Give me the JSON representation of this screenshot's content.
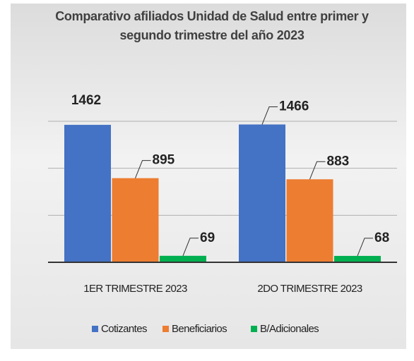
{
  "chart_data": {
    "type": "bar",
    "title": "Comparativo afiliados Unidad de Salud entre primer  y segundo trimestre del año 2023",
    "categories": [
      "1ER TRIMESTRE 2023",
      "2DO TRIMESTRE 2023"
    ],
    "series": [
      {
        "name": "Cotizantes",
        "color": "#4472c4",
        "values": [
          1462,
          1466
        ]
      },
      {
        "name": "Beneficiarios",
        "color": "#ed7d31",
        "values": [
          895,
          883
        ]
      },
      {
        "name": "B/Adicionales",
        "color": "#00b050",
        "values": [
          69,
          68
        ]
      }
    ],
    "ylim": [
      0,
      1500
    ],
    "yticks": [
      500,
      1000,
      1500
    ],
    "grid": true,
    "legend": "bottom"
  }
}
